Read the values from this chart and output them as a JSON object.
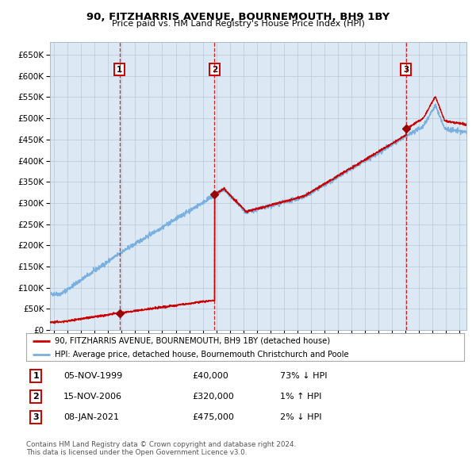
{
  "title": "90, FITZHARRIS AVENUE, BOURNEMOUTH, BH9 1BY",
  "subtitle": "Price paid vs. HM Land Registry's House Price Index (HPI)",
  "plot_bg_color": "#dce9f5",
  "hpi_line_color": "#7ab0df",
  "property_line_color": "#cc0000",
  "marker_color": "#990000",
  "vline_color": "#cc0000",
  "ylim": [
    0,
    680000
  ],
  "yticks": [
    0,
    50000,
    100000,
    150000,
    200000,
    250000,
    300000,
    350000,
    400000,
    450000,
    500000,
    550000,
    600000,
    650000
  ],
  "xlim_start": 1994.7,
  "xlim_end": 2025.5,
  "sale_dates": [
    1999.846,
    2006.873,
    2021.019
  ],
  "sale_prices": [
    40000,
    320000,
    475000
  ],
  "sale_labels": [
    "1",
    "2",
    "3"
  ],
  "legend_property": "90, FITZHARRIS AVENUE, BOURNEMOUTH, BH9 1BY (detached house)",
  "legend_hpi": "HPI: Average price, detached house, Bournemouth Christchurch and Poole",
  "table_rows": [
    [
      "1",
      "05-NOV-1999",
      "£40,000",
      "73% ↓ HPI"
    ],
    [
      "2",
      "15-NOV-2006",
      "£320,000",
      "1% ↑ HPI"
    ],
    [
      "3",
      "08-JAN-2021",
      "£475,000",
      "2% ↓ HPI"
    ]
  ],
  "footnote1": "Contains HM Land Registry data © Crown copyright and database right 2024.",
  "footnote2": "This data is licensed under the Open Government Licence v3.0."
}
